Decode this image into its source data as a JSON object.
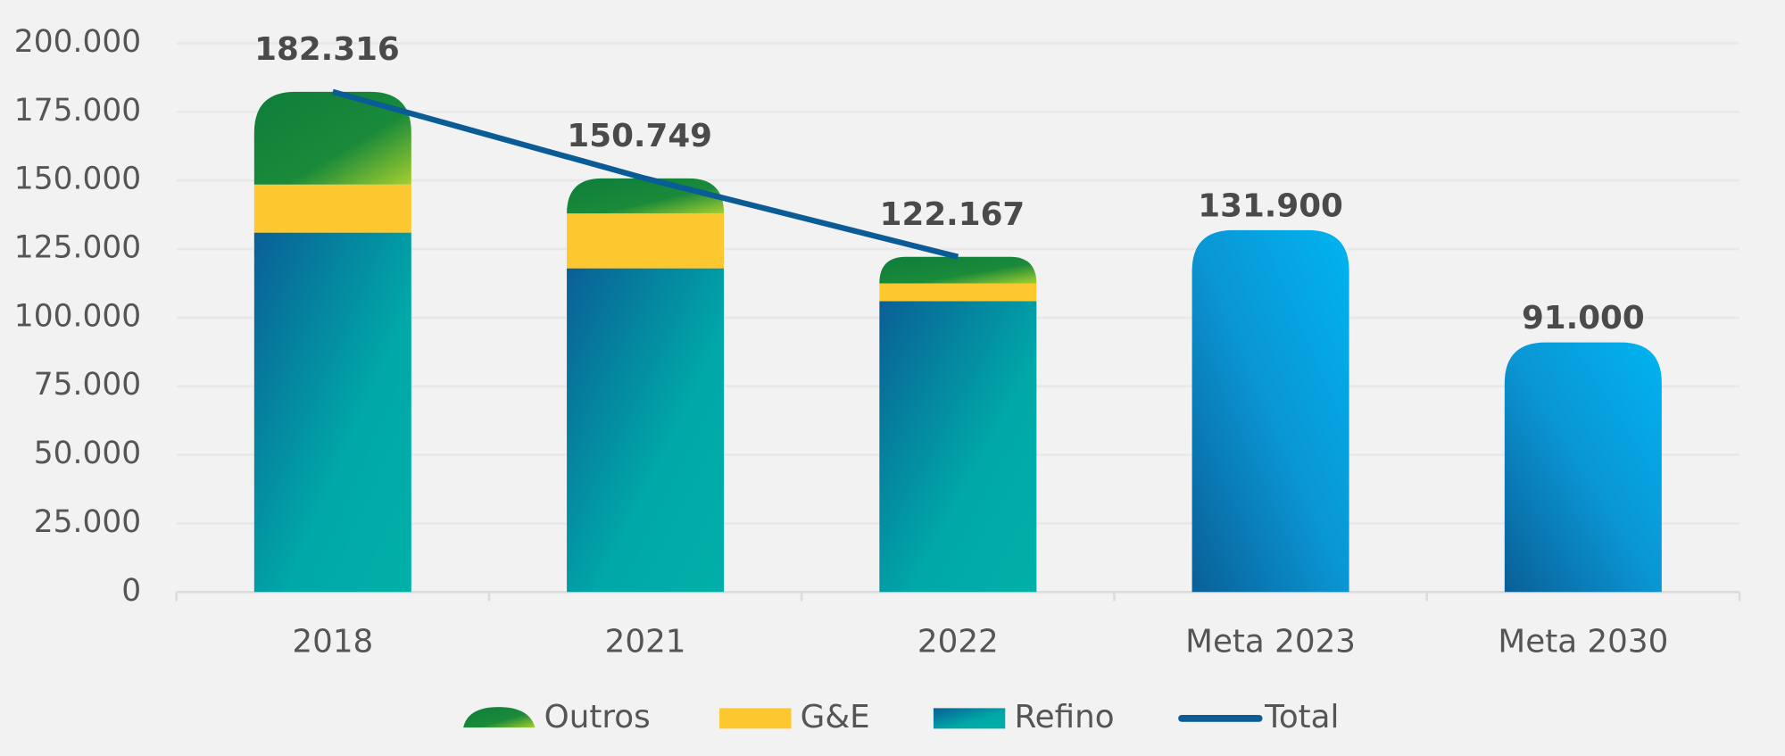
{
  "chart_data": {
    "type": "bar",
    "categories": [
      "2018",
      "2021",
      "2022",
      "Meta 2023",
      "Meta 2030"
    ],
    "series": [
      {
        "name": "Refino",
        "color": "#00a8a8",
        "values": [
          131000,
          118000,
          106000,
          null,
          null
        ]
      },
      {
        "name": "G&E",
        "color": "#fdc82f",
        "values": [
          17500,
          20000,
          6500,
          null,
          null
        ]
      },
      {
        "name": "Outros",
        "color": "#1a8a3a",
        "values": [
          33816,
          12749,
          9667,
          null,
          null
        ]
      },
      {
        "color": "#0aa0dc",
        "values": [
          null,
          null,
          null,
          131900,
          91000
        ],
        "value_labels": [
          null,
          null,
          null,
          "131.900",
          "91.000"
        ]
      },
      {
        "name": "Total",
        "type": "line",
        "color": "#0a5c96",
        "values": [
          182316,
          150749,
          122167,
          null,
          null
        ],
        "value_labels": [
          "182.316",
          "150.749",
          "122.167",
          null,
          null
        ]
      }
    ],
    "ylim": [
      0,
      200000
    ],
    "yticks": [
      0,
      {
        "value": 25000,
        "label": "25.000"
      },
      {
        "value": 50000,
        "label": "50.000"
      },
      {
        "value": 75000,
        "label": "75.000"
      },
      {
        "value": 100000,
        "label": "100.000"
      },
      {
        "value": 125000,
        "label": "125.000"
      },
      {
        "value": 150000,
        "label": "150.000"
      },
      {
        "value": 175000,
        "label": "175.000"
      },
      {
        "value": 200000,
        "label": "200.000"
      }
    ],
    "grid": true
  }
}
